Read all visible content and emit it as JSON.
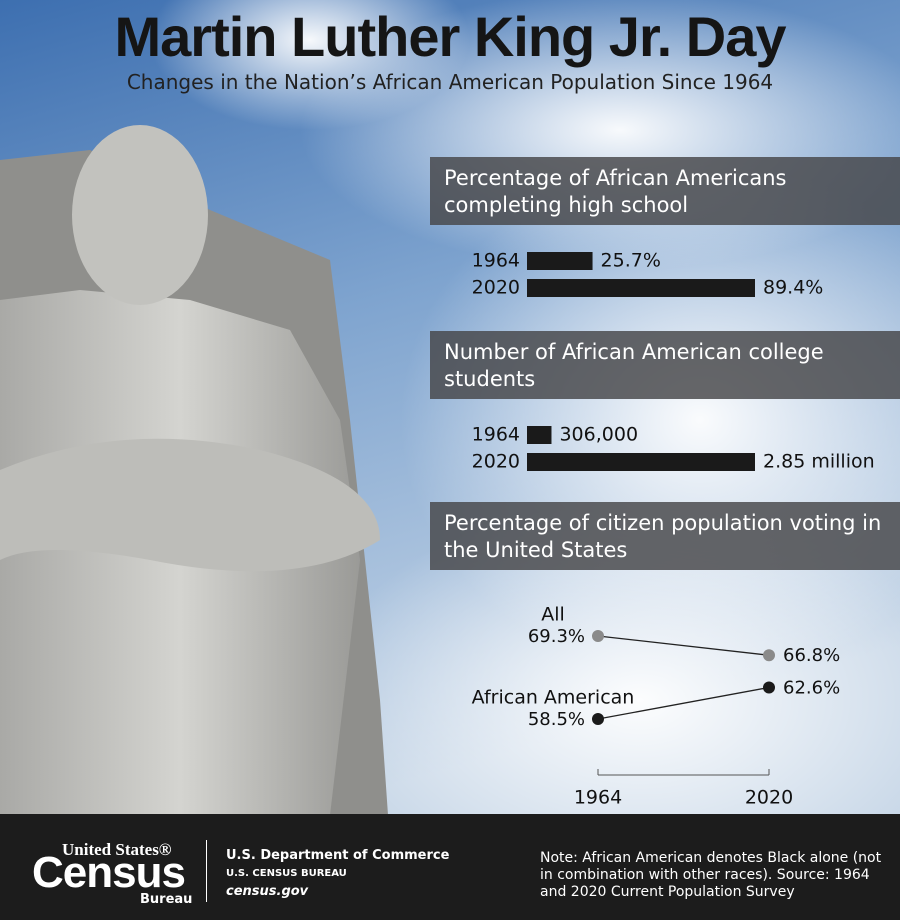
{
  "title": "Martin Luther King Jr. Day",
  "subtitle": "Changes in the Nation’s African American Population Since 1964",
  "chart_data": [
    {
      "type": "bar",
      "title": "Percentage of African Americans completing high school",
      "categories": [
        "1964",
        "2020"
      ],
      "values": [
        25.7,
        89.4
      ],
      "value_labels": [
        "25.7%",
        "89.4%"
      ],
      "color": "#1a1a1a"
    },
    {
      "type": "bar",
      "title": "Number of African American college students",
      "categories": [
        "1964",
        "2020"
      ],
      "values": [
        306000,
        2850000
      ],
      "value_labels": [
        "306,000",
        "2.85 million"
      ],
      "color": "#1a1a1a"
    },
    {
      "type": "line",
      "title": "Percentage of citizen population voting in the United States",
      "categories": [
        "1964",
        "2020"
      ],
      "series": [
        {
          "name": "All",
          "color": "#8a8a8a",
          "values": [
            69.3,
            66.8
          ],
          "value_labels": [
            "69.3%",
            "66.8%"
          ]
        },
        {
          "name": "African American",
          "color": "#1a1a1a",
          "values": [
            58.5,
            62.6
          ],
          "value_labels": [
            "58.5%",
            "62.6%"
          ]
        }
      ]
    }
  ],
  "footer": {
    "logo_top": "United States®",
    "logo_main": "Census",
    "logo_sub": "Bureau",
    "department": "U.S. Department of Commerce",
    "bureau": "U.S. CENSUS BUREAU",
    "website": "census.gov",
    "note": "Note: African American denotes Black alone (not in combination with other races). Source: 1964 and 2020 Current Population Survey"
  }
}
